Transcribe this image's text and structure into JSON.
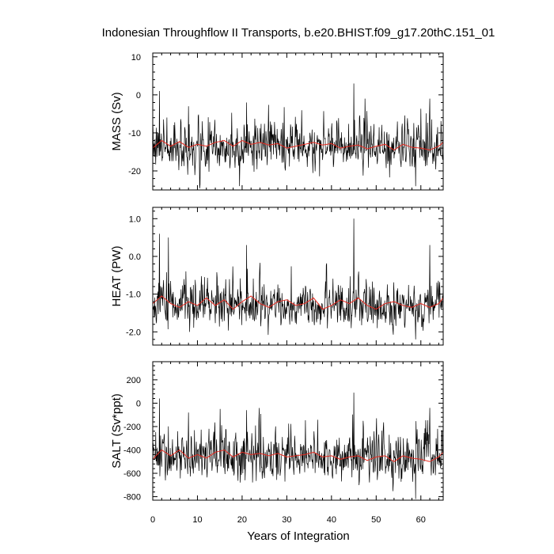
{
  "figure": {
    "title": "Indonesian Throughflow II Transports, b.e20.BHIST.f09_g17.20thC.151_01",
    "xlabel": "Years of Integration"
  },
  "colors": {
    "raw_series": "#000000",
    "smoothed_series": "#e8281e",
    "frame": "#000000",
    "background": "#ffffff"
  },
  "chart_data": [
    {
      "type": "line",
      "ylabel": "MASS (Sv)",
      "xlim": [
        0,
        65
      ],
      "ylim": [
        -25,
        11
      ],
      "xticks": [
        0,
        10,
        20,
        30,
        40,
        50,
        60
      ],
      "yticks": [
        10,
        0,
        -10,
        -20
      ],
      "ytick_labels": [
        "10",
        "0",
        "-10",
        "-20"
      ],
      "grid": false,
      "x_sampling": "monthly, years 0 to 65",
      "series": [
        {
          "role": "monthly",
          "mean": -14,
          "noise_std": 3.0,
          "spikes": [
            [
              1.5,
              1.0
            ],
            [
              8.0,
              -3.0
            ],
            [
              21.0,
              -2.0
            ],
            [
              45.0,
              3.0
            ],
            [
              47.5,
              -1.0
            ],
            [
              58.8,
              10.5
            ],
            [
              58.85,
              -24.0
            ],
            [
              62.0,
              -1.0
            ]
          ]
        },
        {
          "role": "running-mean",
          "x": [
            0,
            2,
            4,
            6,
            8,
            10,
            12,
            14,
            16,
            18,
            20,
            22,
            24,
            26,
            28,
            30,
            32,
            34,
            36,
            38,
            40,
            42,
            44,
            46,
            48,
            50,
            52,
            54,
            56,
            58,
            60,
            62,
            64,
            65
          ],
          "values": [
            -14.0,
            -12.0,
            -13.5,
            -12.3,
            -13.8,
            -13.0,
            -13.5,
            -12.5,
            -12.0,
            -13.5,
            -12.0,
            -13.0,
            -12.5,
            -13.2,
            -12.8,
            -14.0,
            -13.5,
            -13.0,
            -12.5,
            -13.2,
            -12.8,
            -14.0,
            -13.5,
            -13.2,
            -14.2,
            -13.5,
            -13.0,
            -14.5,
            -13.0,
            -13.8,
            -14.0,
            -14.5,
            -13.5,
            -12.5
          ]
        }
      ]
    },
    {
      "type": "line",
      "ylabel": "HEAT (PW)",
      "xlim": [
        0,
        65
      ],
      "ylim": [
        -2.35,
        1.3
      ],
      "xticks": [
        0,
        10,
        20,
        30,
        40,
        50,
        60
      ],
      "yticks": [
        1.0,
        0.0,
        -1.0,
        -2.0
      ],
      "ytick_labels": [
        "1.0",
        "0.0",
        "-1.0",
        "-2.0"
      ],
      "grid": false,
      "x_sampling": "monthly, years 0 to 65",
      "series": [
        {
          "role": "monthly",
          "mean": -1.35,
          "noise_std": 0.3,
          "spikes": [
            [
              1.5,
              0.6
            ],
            [
              3.5,
              0.5
            ],
            [
              21.0,
              0.3
            ],
            [
              45.0,
              1.0
            ],
            [
              58.8,
              1.2
            ],
            [
              58.85,
              -2.2
            ],
            [
              62.0,
              0.3
            ]
          ]
        },
        {
          "role": "running-mean",
          "x": [
            0,
            2,
            4,
            6,
            8,
            10,
            12,
            14,
            16,
            18,
            20,
            22,
            24,
            26,
            28,
            30,
            32,
            34,
            36,
            38,
            40,
            42,
            44,
            46,
            48,
            50,
            52,
            54,
            56,
            58,
            60,
            62,
            64,
            65
          ],
          "values": [
            -1.25,
            -1.05,
            -1.25,
            -1.35,
            -1.2,
            -1.3,
            -1.1,
            -1.3,
            -1.15,
            -1.4,
            -1.2,
            -1.05,
            -1.25,
            -1.35,
            -1.2,
            -1.15,
            -1.3,
            -1.25,
            -1.1,
            -1.4,
            -1.3,
            -1.15,
            -1.25,
            -1.1,
            -1.3,
            -1.4,
            -1.25,
            -1.2,
            -1.3,
            -1.35,
            -1.25,
            -1.35,
            -1.25,
            -1.1
          ]
        }
      ]
    },
    {
      "type": "line",
      "ylabel": "SALT (Sv*ppt)",
      "xlim": [
        0,
        65
      ],
      "ylim": [
        -830,
        355
      ],
      "xticks": [
        0,
        10,
        20,
        30,
        40,
        50,
        60
      ],
      "yticks": [
        200,
        0,
        -200,
        -400,
        -600,
        -800
      ],
      "ytick_labels": [
        "200",
        "0",
        "-200",
        "-400",
        "-600",
        "-800"
      ],
      "grid": false,
      "x_sampling": "monthly, years 0 to 65",
      "series": [
        {
          "role": "monthly",
          "mean": -480,
          "noise_std": 100,
          "spikes": [
            [
              1.5,
              40
            ],
            [
              8.0,
              -80
            ],
            [
              21.0,
              -60
            ],
            [
              45.0,
              90
            ],
            [
              58.8,
              340
            ],
            [
              58.85,
              -820
            ],
            [
              62.0,
              -40
            ]
          ]
        },
        {
          "role": "running-mean",
          "x": [
            0,
            2,
            4,
            6,
            8,
            10,
            12,
            14,
            16,
            18,
            20,
            22,
            24,
            26,
            28,
            30,
            32,
            34,
            36,
            38,
            40,
            42,
            44,
            46,
            48,
            50,
            52,
            54,
            56,
            58,
            60,
            62,
            64,
            65
          ],
          "values": [
            -480,
            -400,
            -450,
            -400,
            -470,
            -440,
            -470,
            -420,
            -400,
            -460,
            -420,
            -440,
            -430,
            -450,
            -430,
            -460,
            -450,
            -440,
            -420,
            -460,
            -450,
            -480,
            -460,
            -450,
            -490,
            -460,
            -450,
            -500,
            -450,
            -470,
            -480,
            -500,
            -460,
            -420
          ]
        }
      ]
    }
  ]
}
